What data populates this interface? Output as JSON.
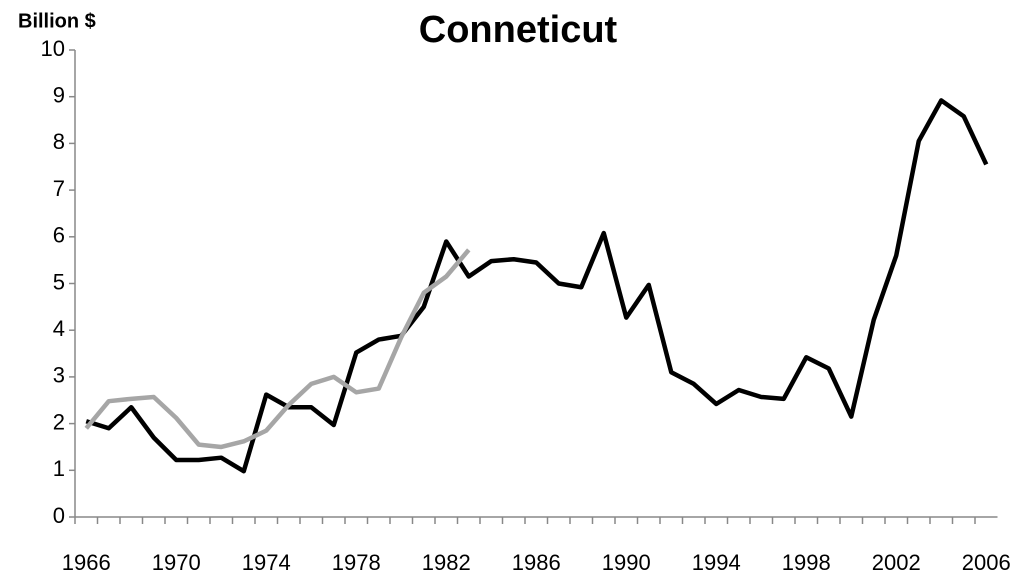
{
  "chart_data": {
    "type": "line",
    "title": "Conneticut",
    "y_label": "Billion $",
    "x": [
      1966,
      1967,
      1968,
      1969,
      1970,
      1971,
      1972,
      1973,
      1974,
      1975,
      1976,
      1977,
      1978,
      1979,
      1980,
      1981,
      1982,
      1983,
      1984,
      1985,
      1986,
      1987,
      1988,
      1989,
      1990,
      1991,
      1992,
      1993,
      1994,
      1995,
      1996,
      1997,
      1998,
      1999,
      2000,
      2001,
      2002,
      2003,
      2004,
      2005,
      2006
    ],
    "series": [
      {
        "color": "#000000",
        "values": [
          2.05,
          1.9,
          2.35,
          1.7,
          1.22,
          1.22,
          1.27,
          0.98,
          2.62,
          2.35,
          2.35,
          1.97,
          3.52,
          3.8,
          3.88,
          4.5,
          5.9,
          5.15,
          5.48,
          5.52,
          5.45,
          5.0,
          4.92,
          6.08,
          4.27,
          4.97,
          3.1,
          2.85,
          2.42,
          2.72,
          2.57,
          2.53,
          3.42,
          3.18,
          2.15,
          4.22,
          5.6,
          8.05,
          8.92,
          8.58,
          7.55
        ]
      },
      {
        "color": "#a6a6a6",
        "values": [
          1.9,
          2.48,
          2.53,
          2.57,
          2.12,
          1.55,
          1.5,
          1.62,
          1.85,
          2.4,
          2.85,
          3.0,
          2.67,
          2.75,
          3.85,
          4.8,
          5.15,
          5.72,
          null,
          null,
          null,
          null,
          null,
          null,
          null,
          null,
          null,
          null,
          null,
          null,
          null,
          null,
          null,
          null,
          null,
          null,
          null,
          null,
          null,
          null,
          null
        ]
      }
    ],
    "xlim": [
      1965.5,
      2006.5
    ],
    "xticks": [
      1966,
      1970,
      1974,
      1978,
      1982,
      1986,
      1990,
      1994,
      1998,
      2002,
      2006
    ],
    "ylim": [
      0,
      10
    ],
    "yticks": [
      0,
      1,
      2,
      3,
      4,
      5,
      6,
      7,
      8,
      9,
      10
    ]
  }
}
